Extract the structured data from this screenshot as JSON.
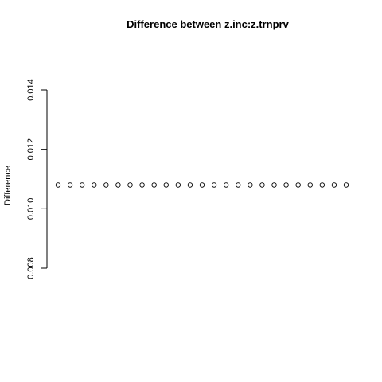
{
  "chart_data": {
    "type": "scatter",
    "title": "Difference between z.inc:z.trnprv",
    "xlabel": "",
    "ylabel": "Difference",
    "ylim": [
      0.008,
      0.014
    ],
    "yticks": [
      "0.008",
      "0.010",
      "0.012",
      "0.014"
    ],
    "x_axis_drawn": false,
    "grid": false,
    "marker": "open-circle",
    "x": [
      1,
      2,
      3,
      4,
      5,
      6,
      7,
      8,
      9,
      10,
      11,
      12,
      13,
      14,
      15,
      16,
      17,
      18,
      19,
      20,
      21,
      22,
      23,
      24,
      25
    ],
    "y": [
      0.0108,
      0.0108,
      0.0108,
      0.0108,
      0.0108,
      0.0108,
      0.0108,
      0.0108,
      0.0108,
      0.0108,
      0.0108,
      0.0108,
      0.0108,
      0.0108,
      0.0108,
      0.0108,
      0.0108,
      0.0108,
      0.0108,
      0.0108,
      0.0108,
      0.0108,
      0.0108,
      0.0108,
      0.0108
    ]
  }
}
